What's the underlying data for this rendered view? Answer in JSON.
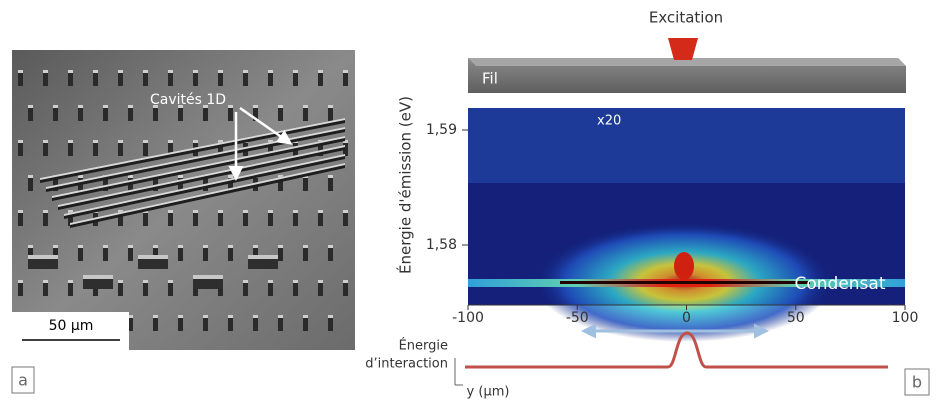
{
  "panel_a": {
    "label": "a",
    "annotation": "Cavités 1D",
    "scale_bar": "50 µm"
  },
  "panel_b": {
    "label": "b",
    "excitation": "Excitation",
    "wire": "Fil",
    "y_axis_title": "Énergie d'émission (eV)",
    "y_ticks": [
      "1,59",
      "1,58"
    ],
    "x_ticks": [
      "-100",
      "-50",
      "0",
      "50",
      "100"
    ],
    "gain": "x20",
    "condensate": "Condensat",
    "interaction_label": [
      "Énergie",
      "d’interaction"
    ],
    "x_axis_title": "y (µm)"
  }
}
